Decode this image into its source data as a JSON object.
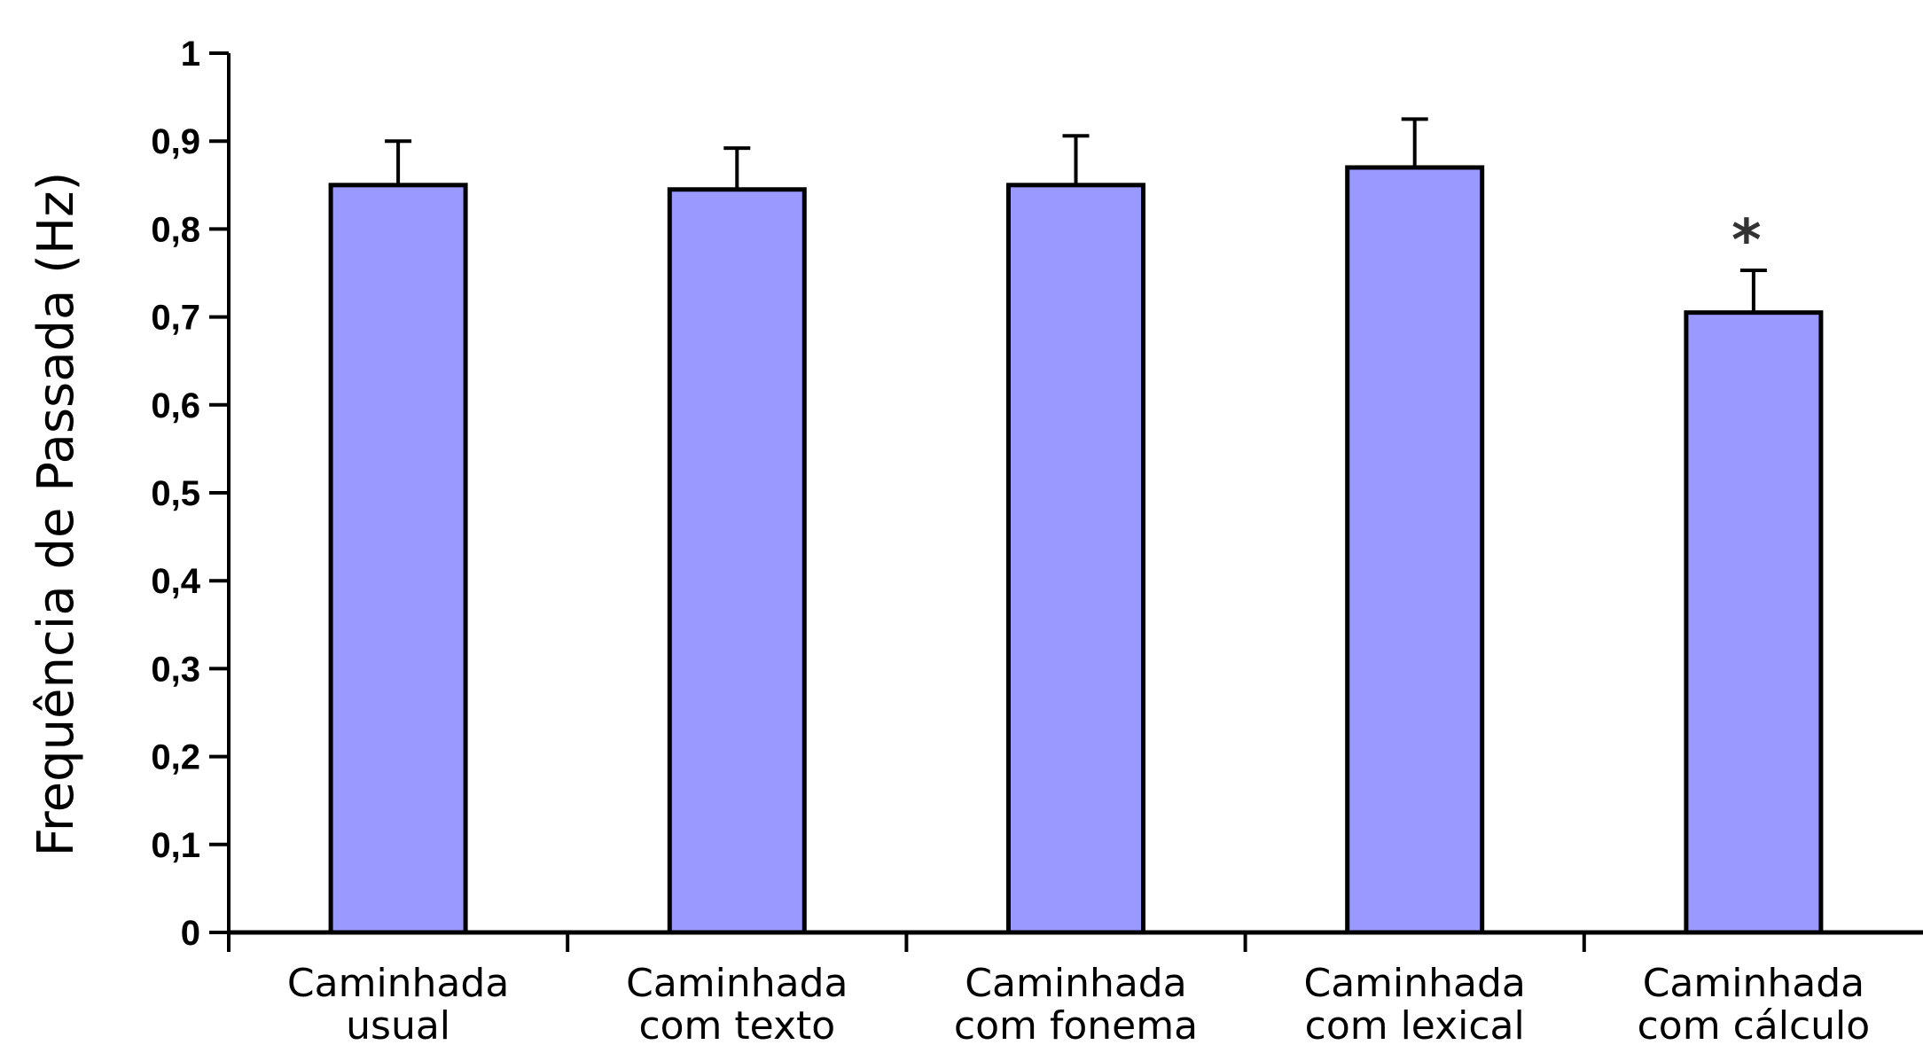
{
  "chart_data": {
    "type": "bar",
    "ylabel": "Frequência de Passada (Hz)",
    "ylim": [
      0,
      1
    ],
    "yticks": [
      "0",
      "0,1",
      "0,2",
      "0,3",
      "0,4",
      "0,5",
      "0,6",
      "0,7",
      "0,8",
      "0,9",
      "1"
    ],
    "categories": [
      [
        "Caminhada",
        "usual"
      ],
      [
        "Caminhada",
        "com texto"
      ],
      [
        "Caminhada",
        "com fonema"
      ],
      [
        "Caminhada",
        "com lexical"
      ],
      [
        "Caminhada",
        "com cálculo"
      ]
    ],
    "values": [
      0.85,
      0.845,
      0.85,
      0.87,
      0.705
    ],
    "error_upper": [
      0.05,
      0.047,
      0.056,
      0.055,
      0.048
    ],
    "annotations": [
      {
        "category_index": 4,
        "text": "*"
      }
    ],
    "bar_color": "#9999ff",
    "bar_edge_color": "#000000",
    "grid": false
  }
}
